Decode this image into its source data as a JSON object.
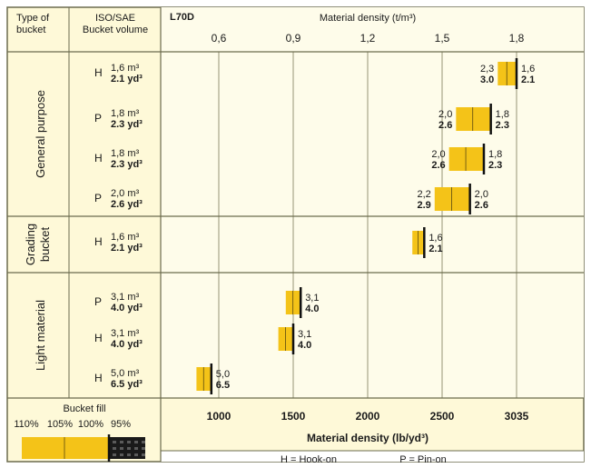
{
  "chart_data": {
    "type": "bar",
    "model": "L70D",
    "col1_header": [
      "Type of",
      "bucket"
    ],
    "col2_header": [
      "ISO/SAE",
      "Bucket volume"
    ],
    "top_axis": {
      "label": "Material density (t/m³)",
      "ticks": [
        "0,6",
        "0,9",
        "1,2",
        "1,5",
        "1,8"
      ],
      "tick_values": [
        0.6,
        0.9,
        1.2,
        1.5,
        1.8
      ]
    },
    "bottom_axis": {
      "label": "Material density (lb/yd³)",
      "ticks": [
        "1000",
        "1500",
        "2000",
        "2500",
        "3035"
      ],
      "tick_values": [
        1000,
        1500,
        2000,
        2500,
        3035
      ]
    },
    "groups": [
      {
        "name": "General purpose",
        "rows": [
          0,
          1,
          2,
          3
        ]
      },
      {
        "name": "Grading bucket",
        "name_lines": [
          "Grading",
          "bucket"
        ],
        "rows": [
          4
        ]
      },
      {
        "name": "Light material",
        "rows": [
          5,
          6,
          7
        ]
      }
    ],
    "rows": [
      {
        "mount": "H",
        "vol_m3": "1,6 m³",
        "vol_yd3": "2.1 yd³",
        "left_labels": [
          "2,3",
          "3.0"
        ],
        "right_labels": [
          "1,6",
          "2.1"
        ],
        "bar_start": 2.3,
        "bar_end": 1.6,
        "unit_start": "t/m³",
        "marker_95": 1.8,
        "marker_100": 1.6
      },
      {
        "mount": "P",
        "vol_m3": "1,8 m³",
        "vol_yd3": "2.3 yd³",
        "left_labels": [
          "2,0",
          "2.6"
        ],
        "right_labels": [
          "1,8",
          "2.3"
        ],
        "bar_start": 2.0,
        "bar_end": 1.8
      },
      {
        "mount": "H",
        "vol_m3": "1,8 m³",
        "vol_yd3": "2.3 yd³",
        "left_labels": [
          "2,0",
          "2.6"
        ],
        "right_labels": [
          "1,8",
          "2.3"
        ],
        "bar_start": 2.0,
        "bar_end": 1.8
      },
      {
        "mount": "P",
        "vol_m3": "2,0 m³",
        "vol_yd3": "2.6 yd³",
        "left_labels": [
          "2,2",
          "2.9"
        ],
        "right_labels": [
          "2,0",
          "2.6"
        ],
        "bar_start": 2.2,
        "bar_end": 2.0
      },
      {
        "mount": "H",
        "vol_m3": "1,6 m³",
        "vol_yd3": "2.1 yd³",
        "left_labels": [],
        "right_labels": [
          "1,6",
          "2.1"
        ],
        "bar_end": 1.6
      },
      {
        "mount": "P",
        "vol_m3": "3,1 m³",
        "vol_yd3": "4.0 yd³",
        "left_labels": [],
        "right_labels": [
          "3,1",
          "4.0"
        ],
        "bar_end": 3.1
      },
      {
        "mount": "H",
        "vol_m3": "3,1 m³",
        "vol_yd3": "4.0 yd³",
        "left_labels": [],
        "right_labels": [
          "3,1",
          "4.0"
        ],
        "bar_end": 3.1
      },
      {
        "mount": "H",
        "vol_m3": "5,0 m³",
        "vol_yd3": "6.5 yd³",
        "left_labels": [],
        "right_labels": [
          "5,0",
          "6.5"
        ],
        "bar_end": 5.0
      }
    ],
    "bars_lbyd3": [
      {
        "fill_110": 3035,
        "fill_95": 2900
      },
      {
        "fill_110": 2850,
        "fill_95": 2600
      },
      {
        "fill_110": 2800,
        "fill_95": 2550
      },
      {
        "fill_110": 2700,
        "fill_95": 2450
      },
      {
        "fill_110": 2380,
        "fill_95": 2300
      },
      {
        "fill_110": 1550,
        "fill_95": 1450
      },
      {
        "fill_110": 1500,
        "fill_95": 1400
      },
      {
        "fill_110": 950,
        "fill_95": 850
      }
    ],
    "legend": {
      "title": "Bucket fill",
      "percents": [
        "110%",
        "105%",
        "100%",
        "95%"
      ]
    },
    "footnote": {
      "hook": "H = Hook-on",
      "pin": "P = Pin-on"
    },
    "colors": {
      "bar": "#f4c318",
      "line": "#111111",
      "grid": "#8a8a6a",
      "background": "#fef9d8",
      "border": "#6b6b4e"
    }
  }
}
